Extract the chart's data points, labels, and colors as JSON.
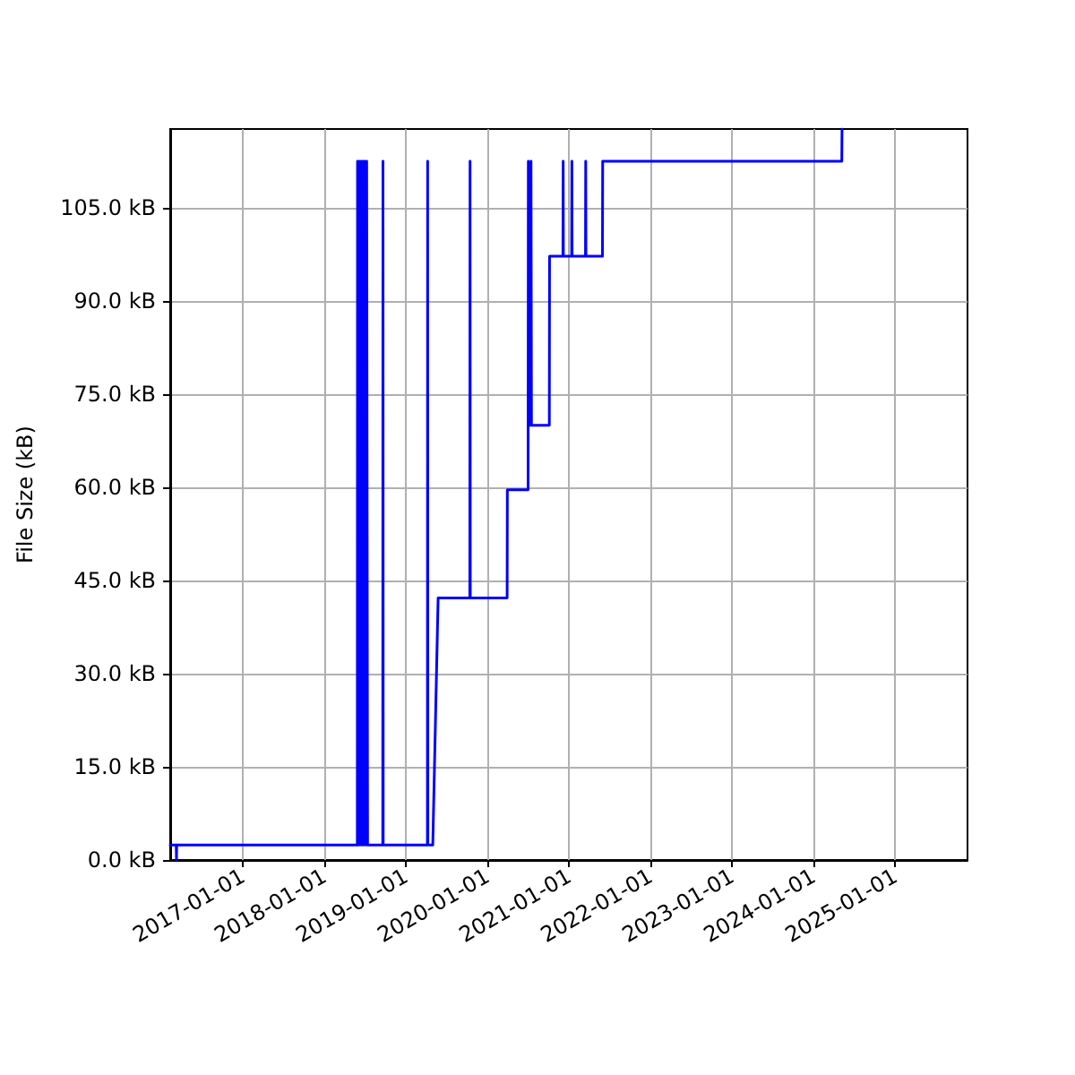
{
  "chart_data": {
    "type": "line",
    "ylabel": "File Size (kB)",
    "x": [
      "2016-02-10",
      "2016-03-08",
      "2016-03-09",
      "2016-03-10",
      "2018-05-28",
      "2018-05-29",
      "2018-06-02",
      "2018-06-06",
      "2018-06-10",
      "2018-06-14",
      "2018-06-18",
      "2018-06-22",
      "2018-06-26",
      "2018-06-30",
      "2018-07-05",
      "2018-07-09",
      "2018-07-13",
      "2018-09-19",
      "2018-09-20",
      "2018-09-21",
      "2019-04-07",
      "2019-04-08",
      "2019-04-09",
      "2019-05-01",
      "2019-05-25",
      "2019-10-14",
      "2019-10-15",
      "2019-10-16",
      "2020-03-29",
      "2020-03-30",
      "2020-07-01",
      "2020-07-02",
      "2020-07-05",
      "2020-07-13",
      "2020-07-14",
      "2020-07-16",
      "2020-10-04",
      "2020-10-05",
      "2020-12-04",
      "2020-12-05",
      "2020-12-06",
      "2021-01-12",
      "2021-01-13",
      "2021-01-14",
      "2021-03-15",
      "2021-03-16",
      "2021-03-17",
      "2021-05-30",
      "2021-05-31",
      "2024-05-06",
      "2024-05-07"
    ],
    "series": [
      {
        "color": "#0000ff",
        "values": [
          2.4,
          2.4,
          0,
          2.4,
          2.4,
          112.5,
          2.4,
          112.5,
          2.4,
          112.5,
          2.4,
          112.5,
          2.4,
          112.5,
          2.4,
          112.5,
          2.4,
          2.4,
          112.5,
          2.4,
          2.4,
          112.5,
          2.4,
          2.4,
          42.2,
          42.2,
          112.5,
          42.2,
          42.2,
          59.6,
          59.6,
          112.5,
          70,
          70,
          112.5,
          70,
          70,
          97.2,
          97.2,
          112.5,
          97.2,
          97.2,
          112.5,
          97.2,
          97.2,
          112.5,
          97.2,
          97.2,
          112.5,
          112.5,
          117.7
        ]
      }
    ],
    "xlim": [
      "2016-02-10",
      "2025-11-20"
    ],
    "xticks": [
      "2017-01-01",
      "2018-01-01",
      "2019-01-01",
      "2020-01-01",
      "2021-01-01",
      "2022-01-01",
      "2023-01-01",
      "2024-01-01",
      "2025-01-01"
    ],
    "ylim": [
      0,
      117.7
    ],
    "yticks": [
      {
        "value": 0,
        "label": "0.0 kB"
      },
      {
        "value": 15,
        "label": "15.0 kB"
      },
      {
        "value": 30,
        "label": "30.0 kB"
      },
      {
        "value": 45,
        "label": "45.0 kB"
      },
      {
        "value": 60,
        "label": "60.0 kB"
      },
      {
        "value": 75,
        "label": "75.0 kB"
      },
      {
        "value": 90,
        "label": "90.0 kB"
      },
      {
        "value": 105,
        "label": "105.0 kB"
      }
    ],
    "grid": true,
    "marker": "none",
    "line_style": "solid"
  }
}
